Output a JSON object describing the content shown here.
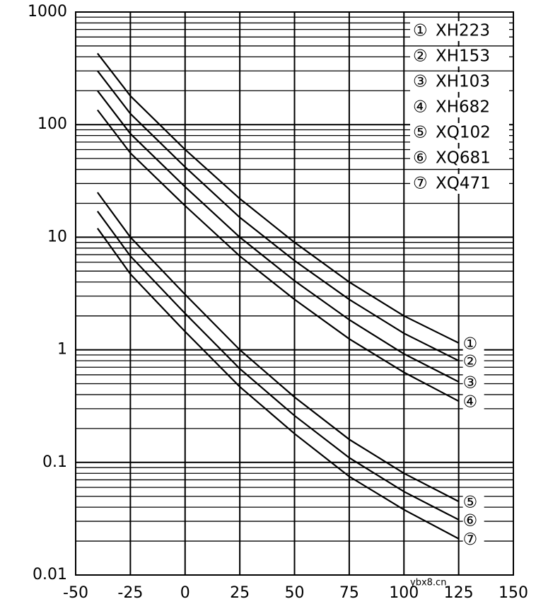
{
  "chart_data": {
    "type": "line",
    "log_y": true,
    "grid": true,
    "legend": "top-right",
    "x": [
      -40,
      -25,
      0,
      25,
      50,
      75,
      100,
      125
    ],
    "xlim": [
      -50,
      150
    ],
    "xticks": [
      -50,
      -25,
      0,
      25,
      50,
      75,
      100,
      125,
      150
    ],
    "ylim": [
      0.01,
      1000
    ],
    "yticks": [
      0.01,
      0.1,
      1,
      10,
      100,
      1000
    ],
    "series": [
      {
        "name": "XH223",
        "label": "①",
        "color": "#000000",
        "values": [
          430,
          180,
          60,
          22,
          9,
          4,
          2,
          1.15
        ]
      },
      {
        "name": "XH153",
        "label": "②",
        "color": "#000000",
        "values": [
          300,
          125,
          42,
          15,
          6.2,
          2.8,
          1.4,
          0.8
        ]
      },
      {
        "name": "XH103",
        "label": "③",
        "color": "#000000",
        "values": [
          200,
          83,
          28,
          10,
          4.1,
          1.85,
          0.92,
          0.52
        ]
      },
      {
        "name": "XH682",
        "label": "④",
        "color": "#000000",
        "values": [
          135,
          56,
          19,
          6.8,
          2.8,
          1.25,
          0.63,
          0.35
        ]
      },
      {
        "name": "XQ102",
        "label": "⑤",
        "color": "#000000",
        "values": [
          25,
          10,
          3.1,
          1.0,
          0.38,
          0.16,
          0.08,
          0.045
        ]
      },
      {
        "name": "XQ681",
        "label": "⑥",
        "color": "#000000",
        "values": [
          17,
          6.8,
          2.1,
          0.68,
          0.26,
          0.11,
          0.055,
          0.031
        ]
      },
      {
        "name": "XQ471",
        "label": "⑦",
        "color": "#000000",
        "values": [
          12,
          4.7,
          1.45,
          0.47,
          0.18,
          0.075,
          0.038,
          0.021
        ]
      }
    ],
    "watermark": "ybx8.cn"
  }
}
